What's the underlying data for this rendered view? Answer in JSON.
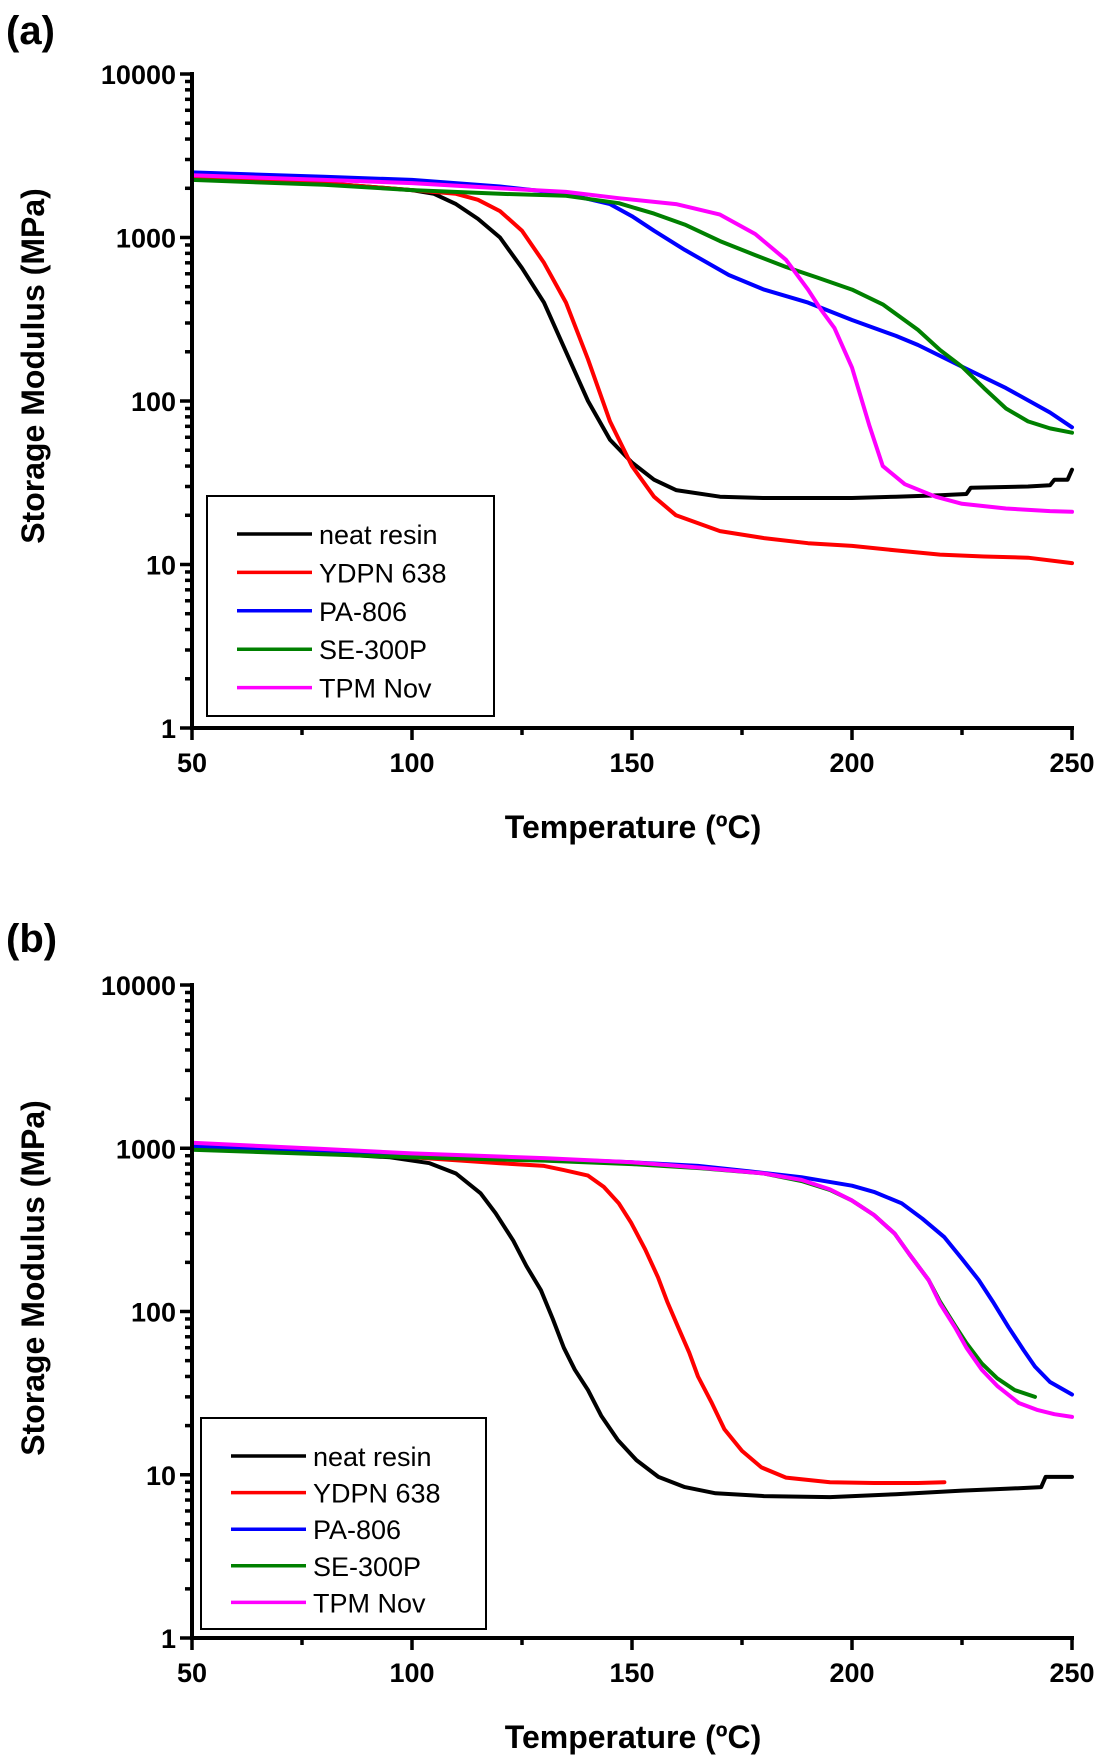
{
  "chart_data": [
    {
      "panel_label": "(a)",
      "type": "line",
      "xlabel": "Temperature (ºC)",
      "ylabel": "Storage Modulus (MPa)",
      "xlim": [
        50,
        250
      ],
      "ylim": [
        1,
        10000
      ],
      "yscale": "log",
      "x_ticks": [
        "50",
        "100",
        "150",
        "200",
        "250"
      ],
      "y_ticks": [
        "1",
        "10",
        "100",
        "1000",
        "10000"
      ],
      "legend_position": "bottom-left",
      "series": [
        {
          "name": "neat resin",
          "color": "#000000",
          "x": [
            50,
            80,
            100,
            105,
            110,
            115,
            120,
            125,
            130,
            135,
            140,
            145,
            150,
            155,
            160,
            170,
            180,
            190,
            200,
            210,
            220,
            226,
            227,
            240,
            245,
            246,
            249,
            250
          ],
          "y": [
            2300,
            2150,
            1950,
            1850,
            1600,
            1300,
            1000,
            650,
            400,
            200,
            100,
            58,
            42,
            33,
            28.5,
            26,
            25.5,
            25.5,
            25.5,
            26,
            26.5,
            27,
            29.5,
            30,
            30.5,
            33,
            33,
            38
          ]
        },
        {
          "name": "YDPN 638",
          "color": "#ff0000",
          "x": [
            50,
            80,
            100,
            110,
            115,
            120,
            125,
            130,
            135,
            140,
            145,
            150,
            155,
            160,
            170,
            180,
            190,
            200,
            210,
            220,
            230,
            240,
            250
          ],
          "y": [
            2350,
            2150,
            1950,
            1850,
            1700,
            1450,
            1100,
            700,
            400,
            180,
            75,
            40,
            26,
            20,
            16,
            14.5,
            13.5,
            13,
            12.2,
            11.5,
            11.2,
            11,
            10.2
          ]
        },
        {
          "name": "PA-806",
          "color": "#0000ff",
          "x": [
            50,
            80,
            100,
            120,
            135,
            145,
            150,
            155,
            162,
            172,
            180,
            190,
            200,
            210,
            215,
            225,
            235,
            245,
            250
          ],
          "y": [
            2500,
            2350,
            2250,
            2050,
            1850,
            1600,
            1350,
            1100,
            840,
            590,
            480,
            400,
            313,
            250,
            220,
            162,
            120,
            85,
            69
          ]
        },
        {
          "name": "SE-300P",
          "color": "#008000",
          "x": [
            50,
            80,
            100,
            120,
            135,
            147,
            155,
            162,
            170,
            178,
            185,
            192,
            200,
            207,
            215,
            220,
            225,
            230,
            235,
            240,
            245,
            250
          ],
          "y": [
            2250,
            2100,
            1950,
            1850,
            1800,
            1620,
            1400,
            1200,
            950,
            780,
            660,
            570,
            480,
            390,
            272,
            205,
            162,
            120,
            90,
            75,
            68,
            64
          ]
        },
        {
          "name": "TPM Nov",
          "color": "#ff00ff",
          "x": [
            50,
            80,
            100,
            120,
            135,
            147,
            160,
            170,
            178,
            185,
            190,
            193,
            196,
            200,
            204,
            207,
            212,
            219,
            225,
            235,
            245,
            250
          ],
          "y": [
            2400,
            2250,
            2150,
            2000,
            1900,
            1740,
            1600,
            1380,
            1050,
            730,
            480,
            360,
            280,
            160,
            70,
            40,
            31,
            26,
            23.5,
            22,
            21.2,
            21
          ]
        }
      ]
    },
    {
      "panel_label": "(b)",
      "type": "line",
      "xlabel": "Temperature (ºC)",
      "ylabel": "Storage Modulus (MPa)",
      "xlim": [
        50,
        250
      ],
      "ylim": [
        1,
        10000
      ],
      "yscale": "log",
      "x_ticks": [
        "50",
        "100",
        "150",
        "200",
        "250"
      ],
      "y_ticks": [
        "1",
        "10",
        "100",
        "1000",
        "10000"
      ],
      "legend_position": "bottom-left",
      "series": [
        {
          "name": "neat resin",
          "color": "#000000",
          "x": [
            50,
            80,
            95,
            104,
            110,
            115.6,
            119,
            123,
            126,
            129.3,
            132,
            134.5,
            137,
            140,
            143,
            146.8,
            151,
            156,
            162,
            169,
            180,
            195,
            210,
            225,
            235,
            243,
            244,
            250
          ],
          "y": [
            1000,
            930,
            880,
            810,
            700,
            530,
            400,
            272,
            190,
            135,
            90,
            60,
            44,
            33,
            23,
            16.3,
            12.3,
            9.7,
            8.4,
            7.7,
            7.4,
            7.3,
            7.6,
            8.0,
            8.2,
            8.4,
            9.7,
            9.7
          ]
        },
        {
          "name": "YDPN 638",
          "color": "#ff0000",
          "x": [
            50,
            80,
            100,
            120,
            130,
            134.5,
            140,
            143.6,
            147,
            149.8,
            153,
            155.9,
            158,
            160.5,
            163,
            165,
            168,
            171,
            175,
            179.4,
            185,
            195,
            205,
            215,
            221
          ],
          "y": [
            1000,
            930,
            880,
            810,
            780,
            735,
            680,
            580,
            460,
            350,
            240,
            162,
            115,
            80,
            56,
            40,
            28,
            19,
            14,
            11.1,
            9.6,
            9.0,
            8.9,
            8.9,
            9.0
          ]
        },
        {
          "name": "PA-806",
          "color": "#0000ff",
          "x": [
            50,
            80,
            100,
            130,
            150,
            165,
            177,
            188.5,
            200,
            205,
            211.3,
            216,
            221,
            225,
            228.8,
            232,
            235.6,
            239,
            241.6,
            245,
            250
          ],
          "y": [
            1030,
            950,
            900,
            860,
            820,
            780,
            720,
            665,
            590,
            540,
            460,
            370,
            285,
            210,
            156,
            115,
            80,
            58,
            46,
            37,
            31
          ]
        },
        {
          "name": "SE-300P",
          "color": "#008000",
          "x": [
            50,
            80,
            100,
            130,
            150,
            165.7,
            180,
            188.5,
            195,
            199.9,
            205,
            209.7,
            213,
            217.4,
            220,
            223.4,
            226,
            229.5,
            233,
            237,
            241.6
          ],
          "y": [
            980,
            920,
            880,
            840,
            800,
            755,
            700,
            630,
            555,
            480,
            390,
            300,
            225,
            156,
            115,
            82,
            64,
            48,
            39,
            33,
            30
          ]
        },
        {
          "name": "TPM Nov",
          "color": "#ff00ff",
          "x": [
            50,
            80,
            100,
            130,
            150,
            165.7,
            180,
            188.5,
            195,
            199.9,
            205,
            209.7,
            213,
            217.4,
            220,
            223.4,
            226,
            229.5,
            233,
            237.9,
            242,
            246,
            250
          ],
          "y": [
            1080,
            990,
            930,
            870,
            820,
            760,
            700,
            640,
            560,
            480,
            390,
            300,
            225,
            156,
            112,
            80,
            60,
            44,
            35,
            27.5,
            25,
            23.5,
            22.6
          ]
        }
      ]
    }
  ]
}
